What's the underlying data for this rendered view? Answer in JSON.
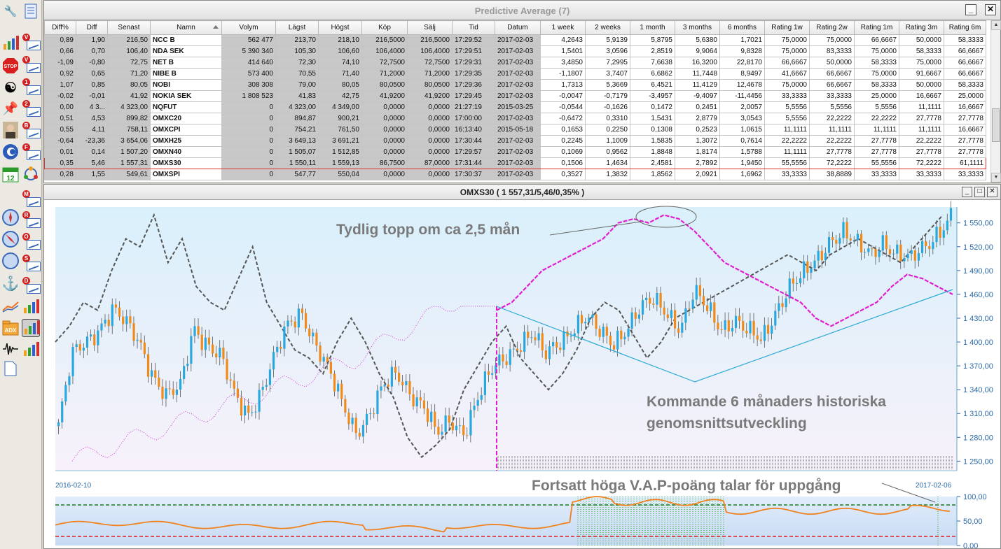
{
  "table_window": {
    "title": "Predictive Average (7)",
    "columns": [
      "Diff%",
      "Diff",
      "Senast",
      "Namn",
      "Volym",
      "Lägst",
      "Högst",
      "Köp",
      "Sälj",
      "Tid",
      "Datum",
      "1 week",
      "2 weeks",
      "1 month",
      "3 months",
      "6 months",
      "Rating 1w",
      "Rating 2w",
      "Rating 1m",
      "Rating 3m",
      "Rating 6m"
    ],
    "highlight_row": 11,
    "rows": [
      [
        "0,89",
        "1,90",
        "216,50",
        "NCC B",
        "562 477",
        "213,70",
        "218,10",
        "216,5000",
        "216,5000",
        "17:29:52",
        "2017-02-03",
        "4,2643",
        "5,9139",
        "5,8795",
        "5,6380",
        "1,7021",
        "75,0000",
        "75,0000",
        "66,6667",
        "50,0000",
        "58,3333"
      ],
      [
        "0,66",
        "0,70",
        "106,40",
        "NDA SEK",
        "5 390 340",
        "105,30",
        "106,60",
        "106,4000",
        "106,4000",
        "17:29:51",
        "2017-02-03",
        "1,5401",
        "3,0596",
        "2,8519",
        "9,9064",
        "9,8328",
        "75,0000",
        "83,3333",
        "75,0000",
        "58,3333",
        "66,6667"
      ],
      [
        "-1,09",
        "-0,80",
        "72,75",
        "NET B",
        "414 640",
        "72,30",
        "74,10",
        "72,7500",
        "72,7500",
        "17:29:31",
        "2017-02-03",
        "3,4850",
        "7,2995",
        "7,6638",
        "16,3200",
        "22,8170",
        "66,6667",
        "50,0000",
        "58,3333",
        "75,0000",
        "66,6667"
      ],
      [
        "0,92",
        "0,65",
        "71,20",
        "NIBE B",
        "573 400",
        "70,55",
        "71,40",
        "71,2000",
        "71,2000",
        "17:29:35",
        "2017-02-03",
        "-1,1807",
        "3,7407",
        "6,6862",
        "11,7448",
        "8,9497",
        "41,6667",
        "66,6667",
        "75,0000",
        "91,6667",
        "66,6667"
      ],
      [
        "1,07",
        "0,85",
        "80,05",
        "NOBI",
        "308 308",
        "79,00",
        "80,05",
        "80,0500",
        "80,0500",
        "17:29:36",
        "2017-02-03",
        "1,7313",
        "5,3669",
        "6,4521",
        "11,4129",
        "12,4678",
        "75,0000",
        "66,6667",
        "58,3333",
        "50,0000",
        "58,3333"
      ],
      [
        "-0,02",
        "-0,01",
        "41,92",
        "NOKIA SEK",
        "1 808 523",
        "41,83",
        "42,75",
        "41,9200",
        "41,9200",
        "17:29:45",
        "2017-02-03",
        "-0,0047",
        "-0,7179",
        "-3,4957",
        "-9,4097",
        "-11,4456",
        "33,3333",
        "33,3333",
        "25,0000",
        "16,6667",
        "25,0000"
      ],
      [
        "0,00",
        "4 3...",
        "4 323,00",
        "NQFUT",
        "0",
        "4 323,00",
        "4 349,00",
        "0,0000",
        "0,0000",
        "21:27:19",
        "2015-03-25",
        "-0,0544",
        "-0,1626",
        "0,1472",
        "0,2451",
        "2,0057",
        "5,5556",
        "5,5556",
        "5,5556",
        "11,1111",
        "16,6667"
      ],
      [
        "0,51",
        "4,53",
        "899,82",
        "OMXC20",
        "0",
        "894,87",
        "900,21",
        "0,0000",
        "0,0000",
        "17:00:00",
        "2017-02-03",
        "-0,6472",
        "0,3310",
        "1,5431",
        "2,8779",
        "3,0543",
        "5,5556",
        "22,2222",
        "22,2222",
        "27,7778",
        "27,7778"
      ],
      [
        "0,55",
        "4,11",
        "758,11",
        "OMXCPI",
        "0",
        "754,21",
        "761,50",
        "0,0000",
        "0,0000",
        "16:13:40",
        "2015-05-18",
        "0,1653",
        "0,2250",
        "0,1308",
        "0,2523",
        "1,0615",
        "11,1111",
        "11,1111",
        "11,1111",
        "11,1111",
        "16,6667"
      ],
      [
        "-0,64",
        "-23,36",
        "3 654,06",
        "OMXH25",
        "0",
        "3 649,13",
        "3 691,21",
        "0,0000",
        "0,0000",
        "17:30:44",
        "2017-02-03",
        "0,2245",
        "1,1009",
        "1,5835",
        "1,3072",
        "0,7614",
        "22,2222",
        "22,2222",
        "27,7778",
        "22,2222",
        "27,7778"
      ],
      [
        "0,01",
        "0,14",
        "1 507,20",
        "OMXN40",
        "0",
        "1 505,07",
        "1 512,85",
        "0,0000",
        "0,0000",
        "17:29:57",
        "2017-02-03",
        "0,1069",
        "0,9562",
        "1,8848",
        "1,8174",
        "1,5788",
        "11,1111",
        "27,7778",
        "27,7778",
        "27,7778",
        "27,7778"
      ],
      [
        "0,35",
        "5,46",
        "1 557,31",
        "OMXS30",
        "0",
        "1 550,11",
        "1 559,13",
        "86,7500",
        "87,0000",
        "17:31:44",
        "2017-02-03",
        "0,1506",
        "1,4634",
        "2,4581",
        "2,7892",
        "1,9450",
        "55,5556",
        "72,2222",
        "55,5556",
        "72,2222",
        "61,1111"
      ],
      [
        "0,28",
        "1,55",
        "549,61",
        "OMXSPI",
        "0",
        "547,77",
        "550,04",
        "0,0000",
        "0,0000",
        "17:30:37",
        "2017-02-03",
        "0,3527",
        "1,3832",
        "1,8562",
        "2,0921",
        "1,6962",
        "33,3333",
        "38,8889",
        "33,3333",
        "33,3333",
        "33,3333"
      ]
    ]
  },
  "chart_window": {
    "title": "OMXS30 ( 1 557,31/5,46/0,35% )",
    "start_date": "2016-02-10",
    "end_date": "2017-02-06",
    "annotation_top": "Tydlig topp om ca 2,5 mån",
    "annotation_mid_line1": "Kommande 6 månaders historiska",
    "annotation_mid_line2": "genomsnittsutveckling",
    "annotation_bottom": "Fortsatt höga V.A.P-poäng talar för uppgång",
    "price_ticks": [
      "1 550,00",
      "1 520,00",
      "1 490,00",
      "1 460,00",
      "1 430,00",
      "1 400,00",
      "1 370,00",
      "1 340,00",
      "1 310,00",
      "1 280,00",
      "1 250,00"
    ],
    "indicator_ticks": [
      "100,00",
      "50,00",
      "0,00"
    ]
  },
  "chart_data": [
    {
      "type": "candlestick",
      "series_name": "OMXS30",
      "ylim": [
        1238,
        1570
      ],
      "x_range": [
        "2016-02-10",
        "2017-02-06"
      ],
      "closes_sampled": [
        1295,
        1380,
        1400,
        1420,
        1440,
        1420,
        1400,
        1360,
        1330,
        1340,
        1420,
        1400,
        1380,
        1330,
        1310,
        1340,
        1380,
        1420,
        1440,
        1400,
        1360,
        1320,
        1290,
        1310,
        1340,
        1360,
        1340,
        1320,
        1280,
        1300,
        1290,
        1330,
        1360,
        1380,
        1400,
        1410,
        1380,
        1400,
        1420,
        1430,
        1410,
        1400,
        1420,
        1440,
        1450,
        1440,
        1420,
        1460,
        1440,
        1420,
        1430,
        1410,
        1400,
        1440,
        1470,
        1480,
        1500,
        1530,
        1540,
        1520,
        1510,
        1530,
        1510,
        1500,
        1520,
        1540,
        1557
      ]
    },
    {
      "type": "line",
      "series_name": "Historical average (grey dashed)",
      "values_sampled": [
        1400,
        1420,
        1450,
        1440,
        1490,
        1530,
        1520,
        1560,
        1500,
        1530,
        1470,
        1450,
        1440,
        1480,
        1520,
        1450,
        1420,
        1390,
        1380,
        1360,
        1400,
        1430,
        1400,
        1360,
        1330,
        1280,
        1255,
        1270,
        1290,
        1340,
        1370,
        1400,
        1420,
        1380,
        1360,
        1340,
        1360,
        1390,
        1430,
        1450,
        1440,
        1410,
        1380,
        1400,
        1430,
        1440,
        1450,
        1460,
        1470,
        1480,
        1490,
        1500,
        1510,
        1500,
        1490,
        1510,
        1520,
        1530,
        1520,
        1510,
        1500,
        1520,
        1540,
        1560
      ]
    },
    {
      "type": "line",
      "series_name": "Forecast next 6 months (magenta)",
      "values_sampled": [
        1440,
        1450,
        1470,
        1490,
        1500,
        1510,
        1520,
        1530,
        1550,
        1555,
        1550,
        1560,
        1555,
        1540,
        1520,
        1500,
        1490,
        1480,
        1470,
        1460,
        1450,
        1430,
        1420,
        1430,
        1440,
        1450,
        1470,
        1485,
        1480,
        1470,
        1460
      ]
    },
    {
      "type": "line",
      "series_name": "V.A.P",
      "ylim": [
        0,
        100
      ],
      "threshold_upper": 80,
      "threshold_lower": 20
    }
  ]
}
